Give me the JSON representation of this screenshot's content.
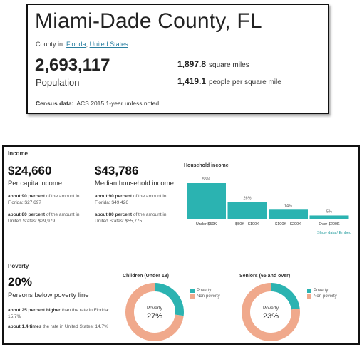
{
  "header": {
    "title": "Miami-Dade County, FL",
    "county_in_prefix": "County in:",
    "state_link": "Florida",
    "separator": ",",
    "country_link": "United States",
    "population": "2,693,117",
    "population_label": "Population",
    "area_value": "1,897.8",
    "area_label": "square miles",
    "density_value": "1,419.1",
    "density_label": "people per square mile",
    "census_label": "Census data:",
    "census_value": "ACS 2015 1-year unless noted"
  },
  "income": {
    "section_title": "Income",
    "per_capita_value": "$24,660",
    "per_capita_label": "Per capita income",
    "per_capita_fl_strong": "about 90 percent",
    "per_capita_fl_rest": "of the amount in Florida: $27,697",
    "per_capita_us_strong": "about 80 percent",
    "per_capita_us_rest": "of the amount in United States: $29,979",
    "median_value": "$43,786",
    "median_label": "Median household income",
    "median_fl_strong": "about 90 percent",
    "median_fl_rest": "of the amount in Florida: $49,426",
    "median_us_strong": "about 80 percent",
    "median_us_rest": "of the amount in United States: $55,775",
    "chart_title": "Household income",
    "show_data_link": "Show data / Embed"
  },
  "poverty": {
    "section_title": "Poverty",
    "rate_value": "20%",
    "rate_label": "Persons below poverty line",
    "fl_strong": "about 25 percent higher",
    "fl_rest": "than the rate in Florida: 15.7%",
    "us_strong": "about 1.4 times",
    "us_rest": "the rate in United States: 14.7%",
    "children_title": "Children (Under 18)",
    "seniors_title": "Seniors (65 and over)",
    "legend_poverty": "Poverty",
    "legend_non_poverty": "Non-poverty",
    "donut_center_label": "Poverty",
    "children_value": "27%",
    "seniors_value": "23%"
  },
  "colors": {
    "teal": "#2bb3b1",
    "salmon": "#f0a98c"
  },
  "chart_data": [
    {
      "type": "bar",
      "title": "Household income",
      "categories": [
        "Under $50K",
        "$50K - $100K",
        "$100K - $200K",
        "Over $200K"
      ],
      "values": [
        55,
        26,
        14,
        5
      ],
      "value_labels": [
        "55%",
        "26%",
        "14%",
        "5%"
      ],
      "ylim": [
        0,
        55
      ],
      "grid": false
    },
    {
      "type": "pie",
      "title": "Children (Under 18)",
      "categories": [
        "Poverty",
        "Non-poverty"
      ],
      "values": [
        27,
        73
      ]
    },
    {
      "type": "pie",
      "title": "Seniors (65 and over)",
      "categories": [
        "Poverty",
        "Non-poverty"
      ],
      "values": [
        23,
        77
      ]
    }
  ]
}
